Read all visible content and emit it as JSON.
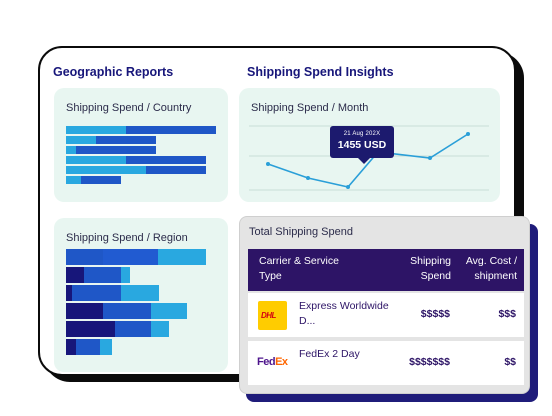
{
  "geo": {
    "title": "Geographic Reports",
    "country_card": {
      "title": "Shipping Spend / Country"
    },
    "region_card": {
      "title": "Shipping Spend / Region"
    }
  },
  "insights": {
    "title": "Shipping Spend Insights",
    "month_card": {
      "title": "Shipping Spend / Month",
      "tooltip": {
        "date": "21 Aug 202X",
        "value": "1455 USD"
      }
    }
  },
  "total": {
    "title": "Total Shipping Spend",
    "columns": {
      "carrier": "Carrier & Service Type",
      "spend": "Shipping Spend",
      "avg": "Avg. Cost / shipment"
    },
    "rows": [
      {
        "logo": "dhl-logo",
        "logo_text": "DHL",
        "service": "Express Worldwide D...",
        "spend": "$$$$$",
        "avg": "$$$"
      },
      {
        "logo": "fedex-logo",
        "logo_fed": "Fed",
        "logo_ex": "Ex",
        "service": "FedEx 2 Day",
        "spend": "$$$$$$$",
        "avg": "$$"
      }
    ]
  },
  "colors": {
    "navy": "#17167a",
    "mid_blue": "#1f57c7",
    "light_blue": "#29a8e0",
    "line": "#2a9fd8",
    "card_bg": "#e8f6f1",
    "table_header": "#2d1466"
  }
}
